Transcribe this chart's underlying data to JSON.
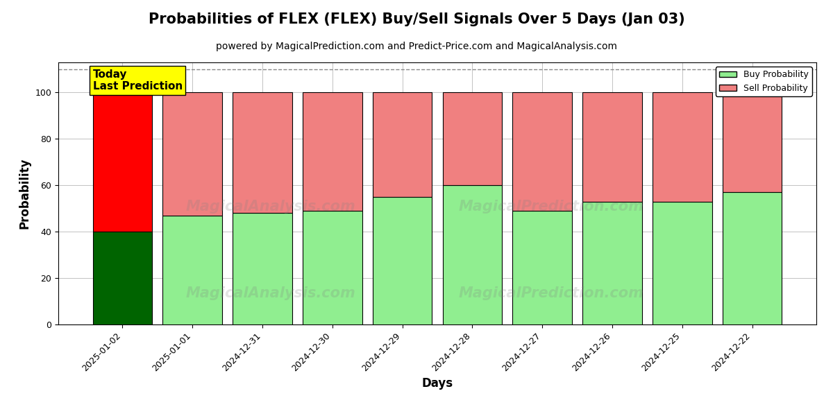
{
  "title": "Probabilities of FLEX (FLEX) Buy/Sell Signals Over 5 Days (Jan 03)",
  "subtitle": "powered by MagicalPrediction.com and Predict-Price.com and MagicalAnalysis.com",
  "xlabel": "Days",
  "ylabel": "Probability",
  "dates": [
    "2025-01-02",
    "2025-01-01",
    "2024-12-31",
    "2024-12-30",
    "2024-12-29",
    "2024-12-28",
    "2024-12-27",
    "2024-12-26",
    "2024-12-25",
    "2024-12-22"
  ],
  "buy_values": [
    40,
    47,
    48,
    49,
    55,
    60,
    49,
    53,
    53,
    57
  ],
  "sell_values": [
    60,
    53,
    52,
    51,
    45,
    40,
    51,
    47,
    47,
    43
  ],
  "today_buy_color": "#006400",
  "today_sell_color": "#FF0000",
  "regular_buy_color": "#90EE90",
  "regular_sell_color": "#F08080",
  "bar_edge_color": "black",
  "bar_linewidth": 0.8,
  "today_annotation_text": "Today\nLast Prediction",
  "today_annotation_bg": "#FFFF00",
  "today_annotation_fontsize": 11,
  "legend_buy_label": "Buy Probability",
  "legend_sell_label": "Sell Probability",
  "ylim_max": 113,
  "yticks": [
    0,
    20,
    40,
    60,
    80,
    100
  ],
  "hline_y": 110,
  "hline_style": "--",
  "hline_color": "#888888",
  "hline_linewidth": 1.0,
  "grid_color": "#aaaaaa",
  "grid_linewidth": 0.5,
  "title_fontsize": 15,
  "subtitle_fontsize": 10,
  "xlabel_fontsize": 12,
  "ylabel_fontsize": 12,
  "tick_fontsize": 9,
  "bg_color": "#ffffff",
  "plot_bg_color": "#ffffff",
  "bar_width": 0.85
}
